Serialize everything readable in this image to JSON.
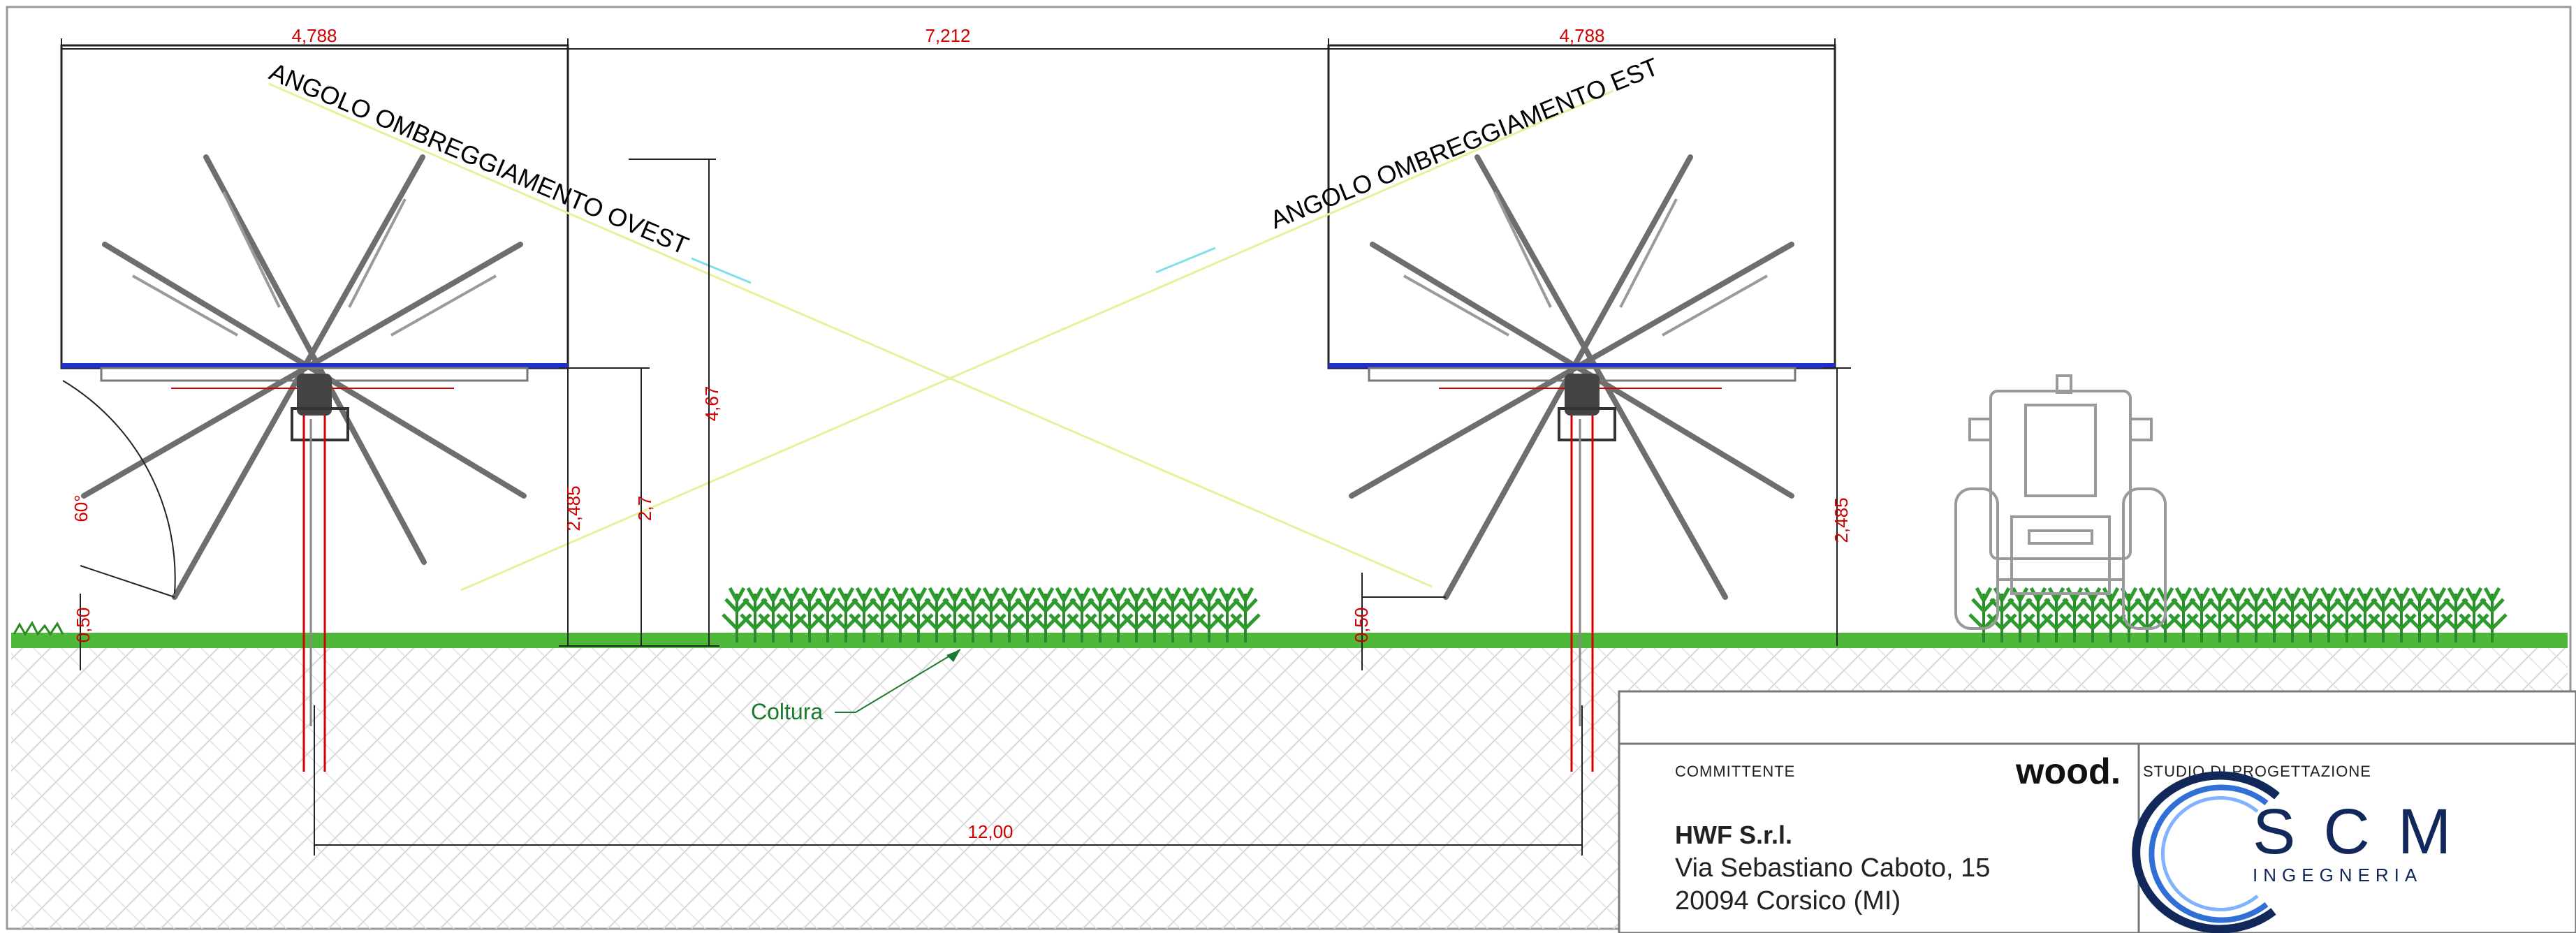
{
  "dimensions": {
    "panel_width_left": "4,788",
    "gap_between_panels": "7,212",
    "panel_width_right": "4,788",
    "axis_height_left": "2,485",
    "axis_height_right": "2,485",
    "total_height": "4,67",
    "clearance_height": "2,7",
    "min_height_left": "0,50",
    "min_height_right": "0,50",
    "tilt_angle": "60°",
    "row_pitch": "12,00"
  },
  "labels": {
    "shade_angle_west": "ANGOLO OMBREGGIAMENTO OVEST",
    "shade_angle_east": "ANGOLO OMBREGGIAMENTO EST",
    "crop": "Coltura"
  },
  "title_block": {
    "client_heading": "COMMITTENTE",
    "client_logo": "wood.",
    "client_name": "HWF S.r.l.",
    "client_address_1": "Via Sebastiano Caboto, 15",
    "client_address_2": "20094 Corsico (MI)",
    "studio_heading": "STUDIO DI PROGETTAZIONE",
    "studio_logo_main": "SCM",
    "studio_logo_sub": "INGEGNERIA"
  },
  "colors": {
    "dimension": "#d00000",
    "panel_tracker": "#1f2fd0",
    "structure": "#6e6e6e",
    "crop": "#2c9a2c",
    "shade_line": "#e9ef9a",
    "studio_brand": "#12285a"
  }
}
